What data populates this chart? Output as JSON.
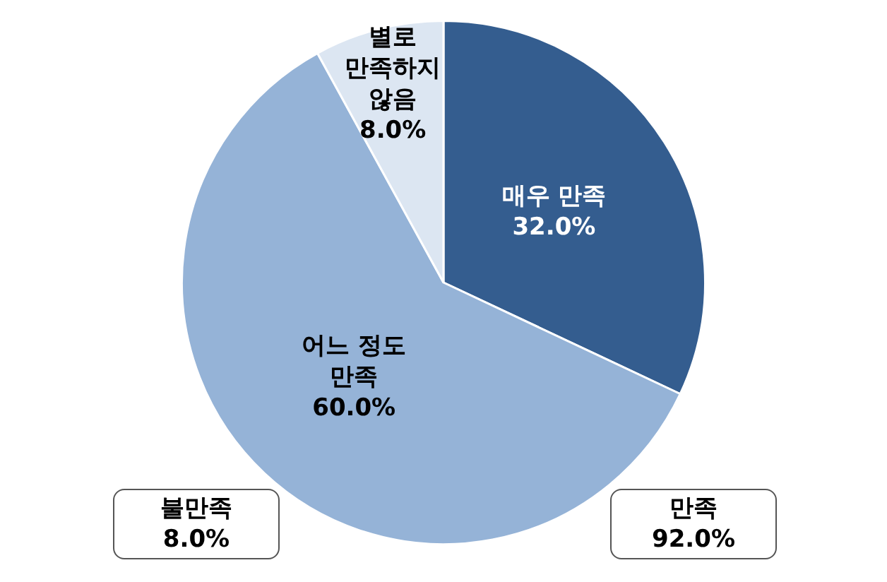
{
  "chart_data": {
    "type": "pie",
    "categories": [
      "매우 만족",
      "어느 정도\n만족",
      "별로\n만족하지\n않음"
    ],
    "values": [
      32.0,
      60.0,
      8.0
    ],
    "value_labels": [
      "32.0%",
      "60.0%",
      "8.0%"
    ],
    "colors": [
      "#345d8f",
      "#95b3d7",
      "#dce6f2"
    ],
    "annotations": [
      "불만족\n8.0%",
      "만족\n92.0%"
    ],
    "legend": false
  }
}
